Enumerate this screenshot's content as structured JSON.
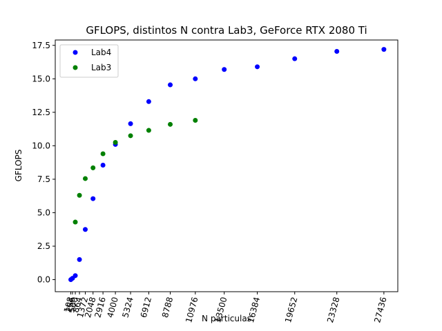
{
  "chart_data": {
    "type": "scatter",
    "title": "GFLOPS, distintos N contra Lab3, GeForce RTX 2080 Ti",
    "xlabel": "N particulas",
    "ylabel": "GFLOPS",
    "xlim": [
      -1250,
      28650
    ],
    "ylim": [
      -0.9,
      17.9
    ],
    "xticks": [
      108,
      256,
      500,
      864,
      1372,
      2048,
      2916,
      4000,
      5324,
      6912,
      8788,
      10976,
      13500,
      16384,
      19652,
      23328,
      27436
    ],
    "xtick_labels": [
      "108",
      "256",
      "500",
      "864",
      "1372",
      "2048",
      "2916",
      "4000",
      "5324",
      "6912",
      "8788",
      "10976",
      "13500",
      "16384",
      "19652",
      "23328",
      "27436"
    ],
    "yticks": [
      0.0,
      2.5,
      5.0,
      7.5,
      10.0,
      12.5,
      15.0,
      17.5
    ],
    "ytick_labels": [
      "0.0",
      "2.5",
      "5.0",
      "7.5",
      "10.0",
      "12.5",
      "15.0",
      "17.5"
    ],
    "grid": false,
    "legend_position": "top-left",
    "series": [
      {
        "name": "Lab4",
        "color": "#0000ff",
        "x": [
          108,
          256,
          500,
          864,
          1372,
          2048,
          2916,
          4000,
          5324,
          6912,
          8788,
          10976,
          13500,
          16384,
          19652,
          23328,
          27436
        ],
        "y": [
          0.0,
          0.1,
          0.3,
          1.5,
          3.75,
          6.05,
          8.55,
          10.1,
          11.65,
          13.3,
          14.55,
          15.0,
          15.7,
          15.9,
          16.5,
          17.05,
          17.2
        ]
      },
      {
        "name": "Lab3",
        "color": "#008000",
        "x": [
          500,
          864,
          1372,
          2048,
          2916,
          4000,
          5324,
          6912,
          8788,
          10976
        ],
        "y": [
          4.3,
          6.3,
          7.55,
          8.35,
          9.4,
          10.25,
          10.75,
          11.15,
          11.6,
          11.9
        ]
      }
    ]
  }
}
